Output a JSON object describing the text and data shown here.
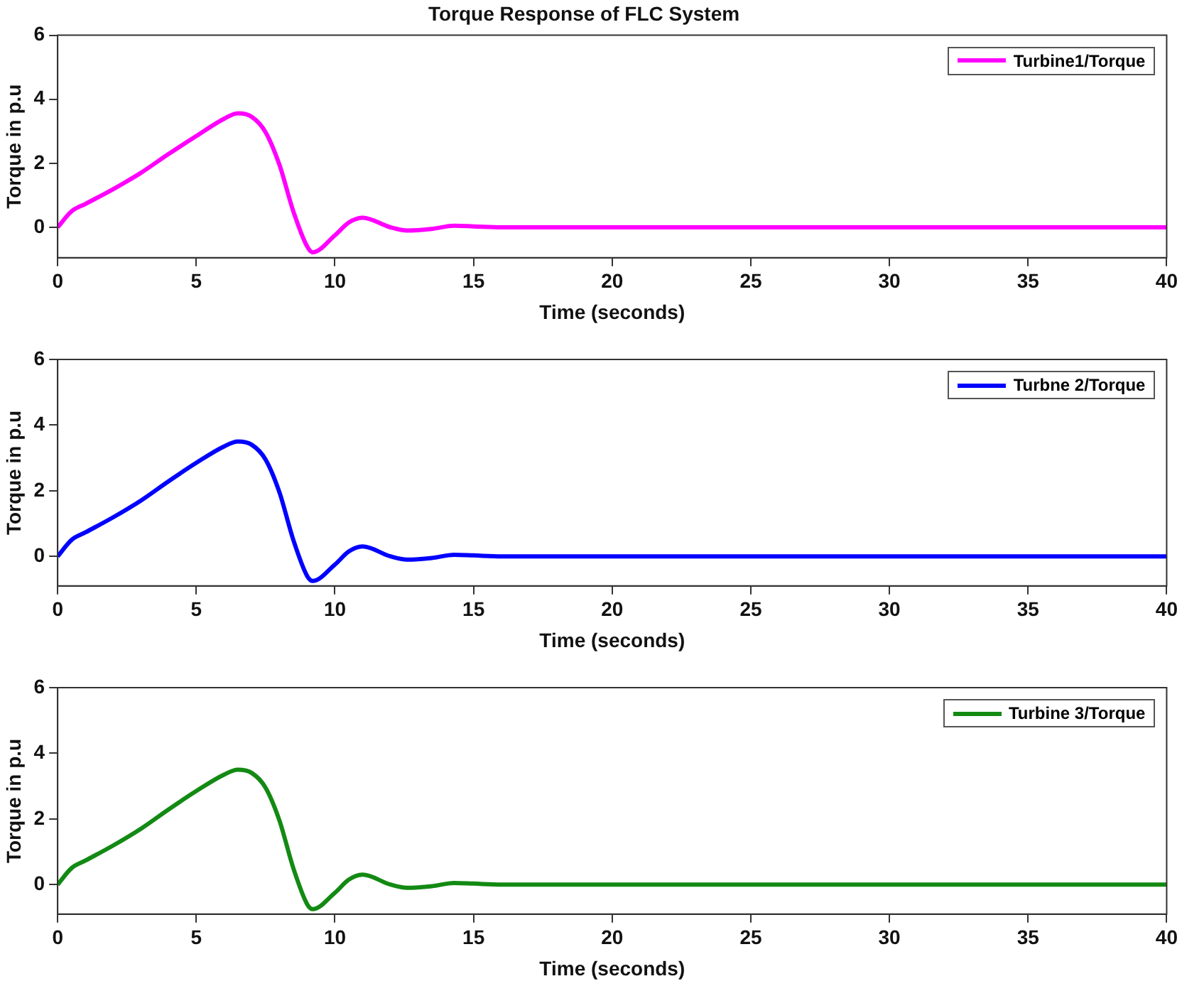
{
  "chart_data": [
    {
      "type": "line",
      "title": "Torque Response of FLC System",
      "xlabel": "Time (seconds)",
      "ylabel": "Torque in p.u",
      "xlim": [
        0,
        40
      ],
      "ylim": [
        -0.95,
        6
      ],
      "xticks": [
        0,
        5,
        10,
        15,
        20,
        25,
        30,
        35,
        40
      ],
      "yticks": [
        0,
        2,
        4,
        6
      ],
      "legend": "top right",
      "x": [
        0,
        0.5,
        1,
        2,
        3,
        4,
        5,
        6,
        6.5,
        7,
        7.5,
        8,
        8.5,
        9,
        9.2,
        10,
        10.5,
        11,
        12,
        12.6,
        13.5,
        14.3,
        15,
        16,
        20,
        25,
        30,
        35,
        40
      ],
      "series": [
        {
          "name": "Turbine1/Torque",
          "color": "#ff00ff",
          "values": [
            0,
            0.5,
            0.73,
            1.19,
            1.7,
            2.29,
            2.85,
            3.39,
            3.56,
            3.45,
            2.97,
            1.95,
            0.5,
            -0.6,
            -0.78,
            -0.25,
            0.15,
            0.3,
            0.0,
            -0.1,
            -0.05,
            0.05,
            0.03,
            0,
            0,
            0,
            0,
            0,
            0
          ]
        }
      ]
    },
    {
      "type": "line",
      "xlabel": "Time (seconds)",
      "ylabel": "Torque in p.u",
      "xlim": [
        0,
        40
      ],
      "ylim": [
        -0.9,
        6
      ],
      "xticks": [
        0,
        5,
        10,
        15,
        20,
        25,
        30,
        35,
        40
      ],
      "yticks": [
        0,
        2,
        4,
        6
      ],
      "legend": "top right",
      "x": [
        0,
        0.5,
        1,
        2,
        3,
        4,
        5,
        6,
        6.5,
        7,
        7.5,
        8,
        8.5,
        9,
        9.2,
        10,
        10.5,
        11,
        12,
        12.6,
        13.5,
        14.3,
        15,
        16,
        20,
        25,
        30,
        35,
        40
      ],
      "series": [
        {
          "name": "Turbne 2/Torque",
          "color": "#0000ff",
          "values": [
            0,
            0.5,
            0.73,
            1.19,
            1.7,
            2.29,
            2.85,
            3.35,
            3.5,
            3.4,
            2.95,
            1.95,
            0.5,
            -0.6,
            -0.75,
            -0.25,
            0.15,
            0.3,
            0.0,
            -0.1,
            -0.05,
            0.05,
            0.03,
            0,
            0,
            0,
            0,
            0,
            0
          ]
        }
      ]
    },
    {
      "type": "line",
      "xlabel": "Time (seconds)",
      "ylabel": "Torque in p.u",
      "xlim": [
        0,
        40
      ],
      "ylim": [
        -0.9,
        6
      ],
      "xticks": [
        0,
        5,
        10,
        15,
        20,
        25,
        30,
        35,
        40
      ],
      "yticks": [
        0,
        2,
        4,
        6
      ],
      "legend": "top right",
      "x": [
        0,
        0.5,
        1,
        2,
        3,
        4,
        5,
        6,
        6.5,
        7,
        7.5,
        8,
        8.5,
        9,
        9.2,
        10,
        10.5,
        11,
        12,
        12.6,
        13.5,
        14.3,
        15,
        16,
        20,
        25,
        30,
        35,
        40
      ],
      "series": [
        {
          "name": "Turbine 3/Torque",
          "color": "#138a13",
          "values": [
            0,
            0.5,
            0.73,
            1.19,
            1.7,
            2.29,
            2.85,
            3.35,
            3.5,
            3.4,
            2.95,
            1.95,
            0.5,
            -0.6,
            -0.75,
            -0.25,
            0.15,
            0.3,
            0.0,
            -0.1,
            -0.05,
            0.05,
            0.03,
            0,
            0,
            0,
            0,
            0,
            0
          ]
        }
      ]
    }
  ]
}
